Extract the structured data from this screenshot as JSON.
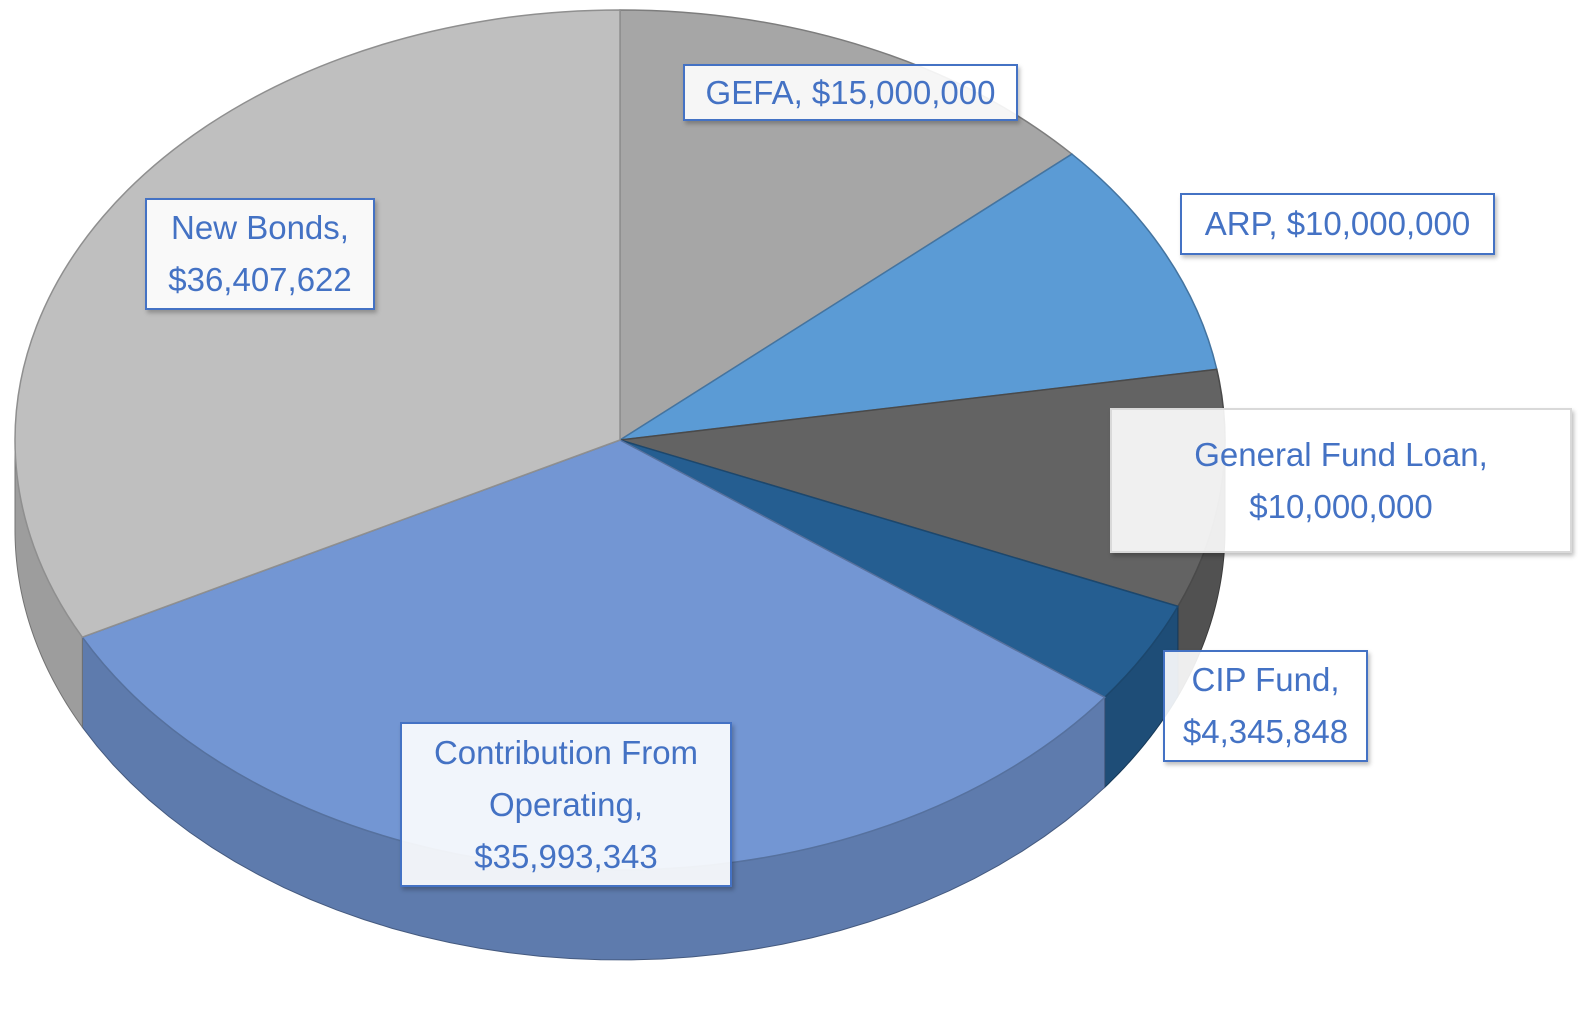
{
  "chart_data": {
    "type": "pie",
    "categories": [
      "GEFA",
      "ARP",
      "General Fund Loan",
      "CIP Fund",
      "Contribution From Operating",
      "New Bonds"
    ],
    "values": [
      15000000,
      10000000,
      10000000,
      4345848,
      35993343,
      36407622
    ],
    "value_labels": [
      "GEFA, $15,000,000",
      "ARP, $10,000,000",
      "General Fund Loan, $10,000,000",
      "CIP Fund, $4,345,848",
      "Contribution From Operating, $35,993,343",
      "New Bonds, $36,407,622"
    ],
    "colors": [
      "#a6a6a6",
      "#5b9bd5",
      "#636363",
      "#255e91",
      "#7396d3",
      "#bfbfbf"
    ]
  }
}
